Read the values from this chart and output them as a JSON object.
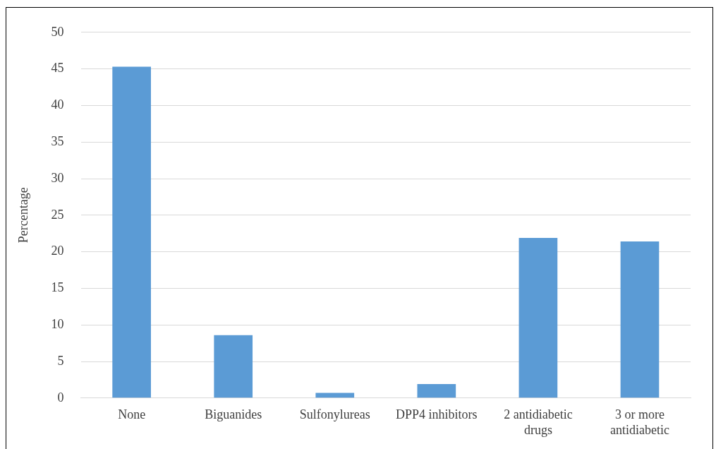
{
  "chart_data": {
    "type": "bar",
    "ylabel": "Percentage",
    "categories": [
      "None",
      "Biguanides",
      "Sulfonylureas",
      "DPP4 inhibitors",
      "2 antidiabetic drugs",
      "3 or more antidiabetic"
    ],
    "values": [
      45.3,
      8.6,
      0.7,
      1.9,
      21.9,
      21.4
    ],
    "color": "#5b9bd5",
    "ylim": [
      0,
      50
    ],
    "yticks": [
      0,
      5,
      10,
      15,
      20,
      25,
      30,
      35,
      40,
      45,
      50
    ],
    "grid": "y",
    "legend": false
  }
}
